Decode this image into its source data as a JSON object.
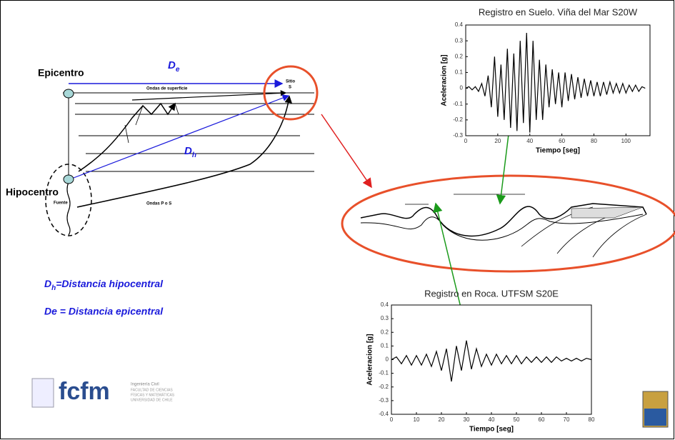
{
  "diagram": {
    "epicenter": "Epicentro",
    "hypocenter": "Hipocentro",
    "de_label": {
      "main": "D",
      "sub": "e"
    },
    "dh_label": {
      "main": "D",
      "sub": "h"
    },
    "surface_waves": "Ondas de superficie",
    "site": "Sitio",
    "site_code": "S",
    "source": "Fuente",
    "body_waves": "Ondas P o S",
    "legend_dh": {
      "main": "D",
      "sub": "h",
      "rest": "=Distancia hipocentral"
    },
    "legend_de": "De = Distancia epicentral"
  },
  "logo": {
    "name": "fcfm",
    "line1": "Ingeniería Civil",
    "line2": "FACULTAD DE CIENCIAS",
    "line3": "FÍSICAS Y MATEMÁTICAS",
    "line4": "UNIVERSIDAD DE CHILE"
  },
  "chart_data": [
    {
      "type": "line",
      "title": "Registro en Suelo. Viña del Mar S20W",
      "x_label": "Tiempo [seg]",
      "y_label": "Aceleracion [g]",
      "xlim": [
        0,
        115
      ],
      "ylim": [
        -0.3,
        0.4
      ],
      "xticks": [
        0,
        20,
        40,
        60,
        80,
        100
      ],
      "yticks": [
        -0.3,
        -0.2,
        -0.1,
        0,
        0.1,
        0.2,
        0.3,
        0.4
      ],
      "series": [
        {
          "color": "#000000",
          "x": [
            0,
            2,
            4,
            6,
            8,
            10,
            12,
            14,
            16,
            18,
            20,
            22,
            24,
            26,
            28,
            30,
            32,
            34,
            36,
            38,
            40,
            42,
            44,
            46,
            48,
            50,
            52,
            54,
            56,
            58,
            60,
            62,
            64,
            66,
            68,
            70,
            72,
            74,
            76,
            78,
            80,
            82,
            84,
            86,
            88,
            90,
            92,
            94,
            96,
            98,
            100,
            102,
            104,
            106,
            108,
            110,
            112
          ],
          "values": [
            0,
            0.01,
            -0.01,
            0.01,
            -0.02,
            0.03,
            -0.05,
            0.08,
            -0.12,
            0.2,
            -0.18,
            0.15,
            -0.2,
            0.25,
            -0.25,
            0.22,
            -0.27,
            0.3,
            -0.22,
            0.35,
            -0.28,
            0.3,
            -0.2,
            0.18,
            -0.2,
            0.15,
            -0.12,
            0.12,
            -0.1,
            0.1,
            -0.12,
            0.1,
            -0.08,
            0.09,
            -0.07,
            0.07,
            -0.06,
            0.06,
            -0.05,
            0.05,
            -0.05,
            0.04,
            -0.05,
            0.04,
            -0.04,
            0.04,
            -0.03,
            0.03,
            -0.03,
            0.03,
            -0.03,
            0.02,
            -0.02,
            0.02,
            -0.02,
            0.01,
            0
          ]
        }
      ]
    },
    {
      "type": "line",
      "title": "Registro en Roca. UTFSM S20E",
      "x_label": "Tiempo [seg]",
      "y_label": "Aceleracion [g]",
      "xlim": [
        0,
        80
      ],
      "ylim": [
        -0.4,
        0.4
      ],
      "xticks": [
        0,
        10,
        20,
        30,
        40,
        50,
        60,
        70,
        80
      ],
      "yticks": [
        -0.4,
        -0.3,
        -0.2,
        -0.1,
        0,
        0.1,
        0.2,
        0.3,
        0.4
      ],
      "series": [
        {
          "color": "#000000",
          "x": [
            0,
            2,
            4,
            6,
            8,
            10,
            12,
            14,
            16,
            18,
            20,
            22,
            24,
            26,
            28,
            30,
            32,
            34,
            36,
            38,
            40,
            42,
            44,
            46,
            48,
            50,
            52,
            54,
            56,
            58,
            60,
            62,
            64,
            66,
            68,
            70,
            72,
            74,
            76,
            78,
            80
          ],
          "values": [
            0,
            0.02,
            -0.03,
            0.03,
            -0.04,
            0.03,
            -0.04,
            0.04,
            -0.05,
            0.06,
            -0.08,
            0.08,
            -0.16,
            0.1,
            -0.08,
            0.14,
            -0.07,
            0.08,
            -0.05,
            0.04,
            -0.04,
            0.04,
            -0.03,
            0.03,
            -0.03,
            0.03,
            -0.03,
            0.02,
            -0.02,
            0.02,
            -0.02,
            0.02,
            -0.02,
            0.02,
            -0.01,
            0.01,
            -0.01,
            0.01,
            -0.01,
            0.01,
            0
          ]
        }
      ]
    }
  ]
}
